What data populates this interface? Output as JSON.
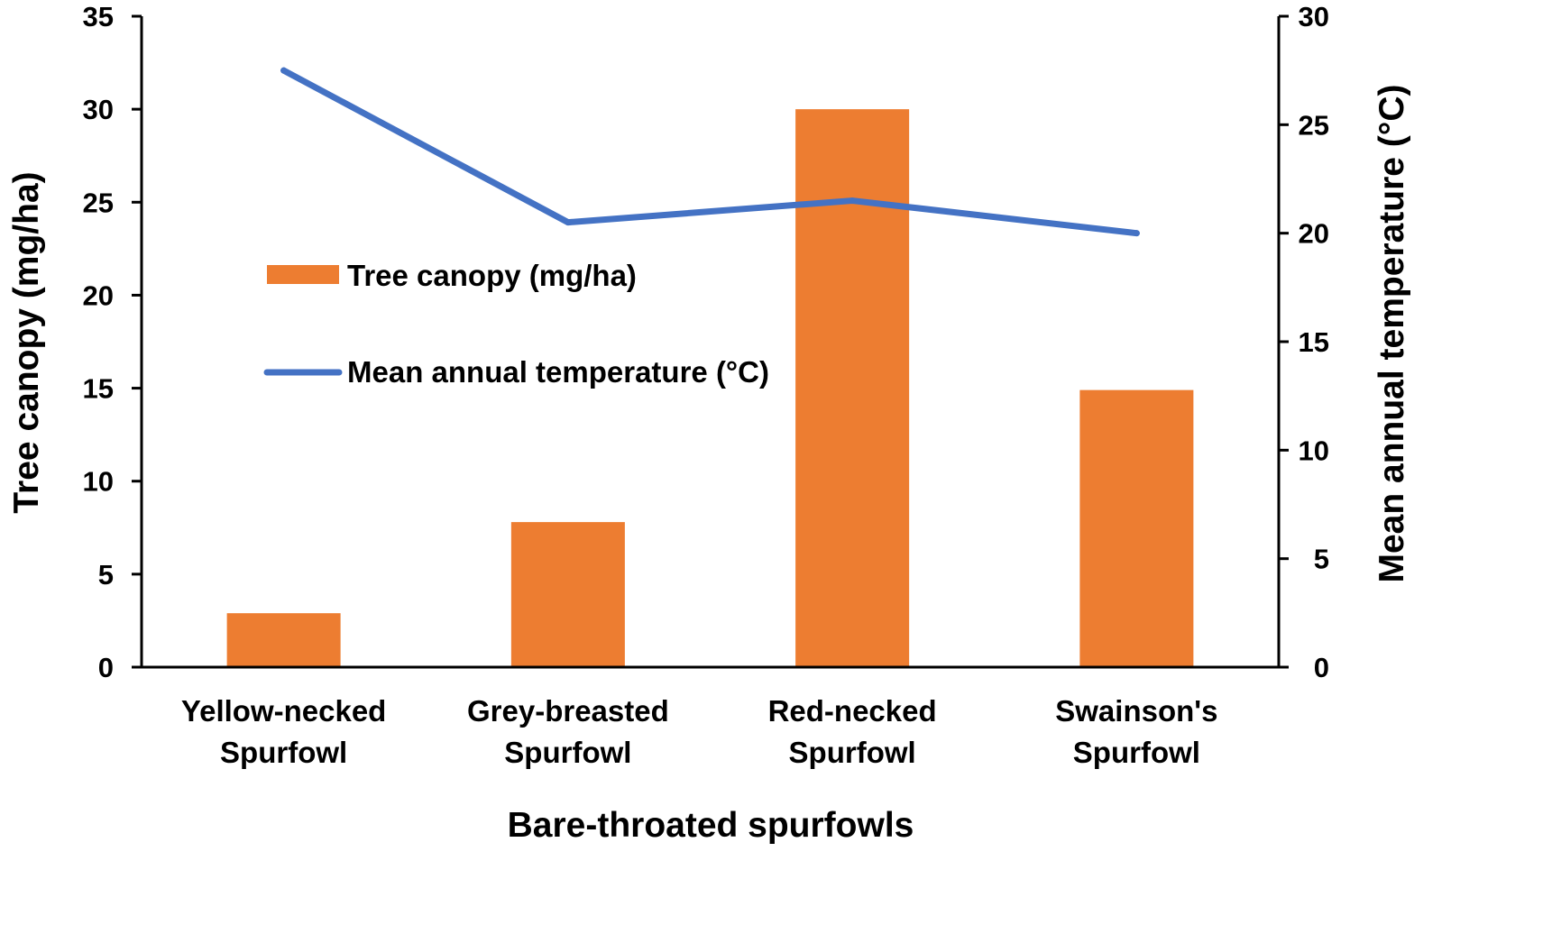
{
  "chart_data": {
    "type": "bar",
    "categories": [
      [
        "Yellow-necked",
        "Spurfowl"
      ],
      [
        "Grey-breasted",
        "Spurfowl"
      ],
      [
        "Red-necked",
        "Spurfowl"
      ],
      [
        "Swainson's",
        "Spurfowl"
      ]
    ],
    "series": [
      {
        "name": "Tree canopy (mg/ha)",
        "type": "bar",
        "axis": "left",
        "values": [
          2.9,
          7.8,
          30.0,
          14.9
        ]
      },
      {
        "name": "Mean annual temperature (°C)",
        "type": "line",
        "axis": "right",
        "values": [
          27.5,
          20.5,
          21.5,
          20.0
        ]
      }
    ],
    "xlabel": "Bare-throated spurfowls",
    "ylabel": "Tree canopy (mg/ha)",
    "ylabel_right": "Mean annual temperature (°C)",
    "ylim": [
      0,
      35
    ],
    "ylim_right": [
      0,
      30
    ],
    "yticks": [
      0,
      5,
      10,
      15,
      20,
      25,
      30,
      35
    ],
    "yticks_right": [
      0,
      5,
      10,
      15,
      20,
      25,
      30
    ],
    "grid": false,
    "legend_position": "upper-left inside plot",
    "colors": {
      "bar": "#ED7D31",
      "line": "#4472C4",
      "axis": "#000000"
    }
  }
}
